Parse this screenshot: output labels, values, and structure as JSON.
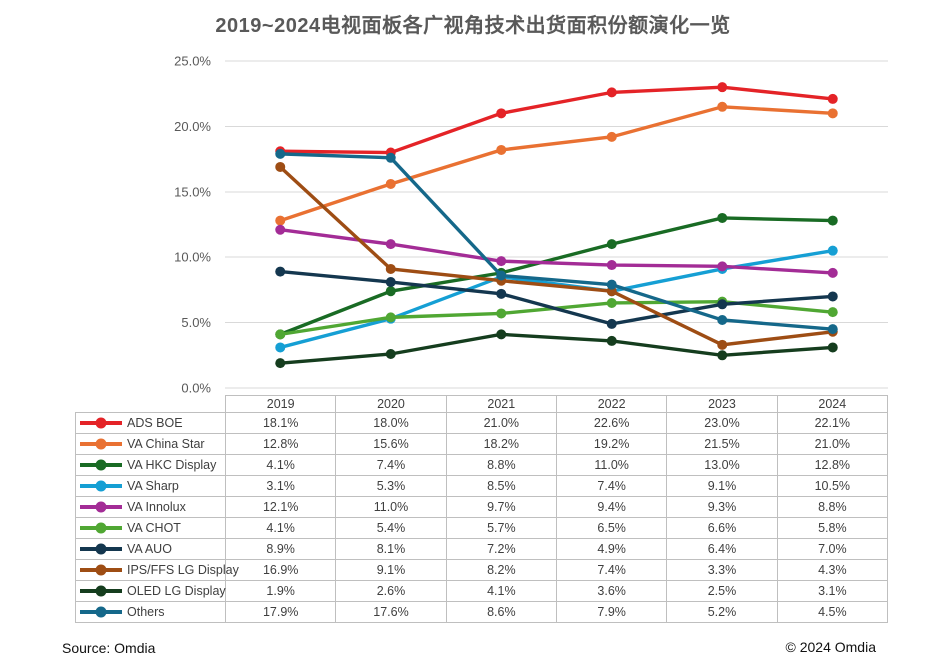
{
  "title": "2019~2024电视面板各广视角技术出货面积份额演化一览",
  "footer": {
    "source": "Source: Omdia",
    "copyright": "© 2024 Omdia"
  },
  "colors": {
    "gridline": "#D9D9D9",
    "axis_text": "#595959",
    "table_border": "#BFBFBF",
    "table_text": "#3F3F3F"
  },
  "chart_data": {
    "type": "line",
    "title": "2019~2024电视面板各广视角技术出货面积份额演化一览",
    "x": [
      "2019",
      "2020",
      "2021",
      "2022",
      "2023",
      "2024"
    ],
    "xlabel": "",
    "ylabel": "",
    "ylim": [
      0,
      25
    ],
    "ytick_step": 5,
    "ytick_format": "one_decimal_percent",
    "grid": true,
    "legend_position": "table-below-chart",
    "value_unit": "percent_share_of_shipment_area",
    "series": [
      {
        "name": "ADS BOE",
        "color": "#E42327",
        "values": [
          18.1,
          18.0,
          21.0,
          22.6,
          23.0,
          22.1
        ]
      },
      {
        "name": "VA China Star",
        "color": "#E97132",
        "values": [
          12.8,
          15.6,
          18.2,
          19.2,
          21.5,
          21.0
        ]
      },
      {
        "name": "VA HKC Display",
        "color": "#196B24",
        "values": [
          4.1,
          7.4,
          8.8,
          11.0,
          13.0,
          12.8
        ]
      },
      {
        "name": "VA Sharp",
        "color": "#159FD4",
        "values": [
          3.1,
          5.3,
          8.5,
          7.4,
          9.1,
          10.5
        ]
      },
      {
        "name": "VA Innolux",
        "color": "#A32C96",
        "values": [
          12.1,
          11.0,
          9.7,
          9.4,
          9.3,
          8.8
        ]
      },
      {
        "name": "VA CHOT",
        "color": "#50A733",
        "values": [
          4.1,
          5.4,
          5.7,
          6.5,
          6.6,
          5.8
        ]
      },
      {
        "name": "VA AUO",
        "color": "#14374F",
        "values": [
          8.9,
          8.1,
          7.2,
          4.9,
          6.4,
          7.0
        ]
      },
      {
        "name": "IPS/FFS LG Display",
        "color": "#9E4D14",
        "values": [
          16.9,
          9.1,
          8.2,
          7.4,
          3.3,
          4.3
        ]
      },
      {
        "name": "OLED LG Display",
        "color": "#153D1E",
        "values": [
          1.9,
          2.6,
          4.1,
          3.6,
          2.5,
          3.1
        ]
      },
      {
        "name": "Others",
        "color": "#15688A",
        "values": [
          17.9,
          17.6,
          8.6,
          7.9,
          5.2,
          4.5
        ]
      }
    ]
  }
}
